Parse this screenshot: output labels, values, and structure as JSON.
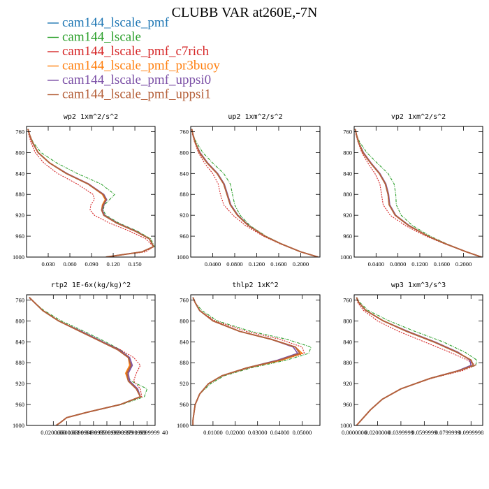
{
  "figure": {
    "title": "CLUBB VAR at260E,-7N"
  },
  "legend": [
    {
      "name": "cam144_lscale_pmf",
      "color": "#1f77b4"
    },
    {
      "name": "cam144_lscale",
      "color": "#2ca02c"
    },
    {
      "name": "cam144_lscale_pmf_c7rich",
      "color": "#d62728"
    },
    {
      "name": "cam144_lscale_pmf_pr3buoy",
      "color": "#ff7f0e"
    },
    {
      "name": "cam144_lscale_pmf_uppsi0",
      "color": "#7b4fa6"
    },
    {
      "name": "cam144_lscale_pmf_uppsi1",
      "color": "#b5603a"
    }
  ],
  "chart_data": [
    {
      "type": "line",
      "title": "wp2  1xm^2/s^2",
      "xlim": [
        0,
        0.178
      ],
      "ylim": [
        1000,
        750
      ],
      "xticks": [
        0.03,
        0.06,
        0.09,
        0.12,
        0.15
      ],
      "xtick_labels": [
        "0.030",
        "0.060",
        "0.090",
        "0.120",
        "0.150"
      ],
      "yticks": [
        760,
        800,
        840,
        880,
        920,
        960,
        1000
      ],
      "y": [
        755,
        765,
        780,
        800,
        820,
        840,
        860,
        880,
        890,
        900,
        910,
        920,
        935,
        950,
        965,
        980,
        990,
        1000
      ],
      "series": [
        {
          "name": "cam144_lscale_pmf",
          "x": [
            0.002,
            0.004,
            0.008,
            0.016,
            0.032,
            0.055,
            0.085,
            0.106,
            0.11,
            0.106,
            0.104,
            0.107,
            0.125,
            0.15,
            0.17,
            0.176,
            0.16,
            0.11
          ]
        },
        {
          "name": "cam144_lscale",
          "x": [
            0.002,
            0.004,
            0.009,
            0.02,
            0.042,
            0.07,
            0.103,
            0.122,
            0.115,
            0.108,
            0.106,
            0.11,
            0.128,
            0.153,
            0.172,
            0.177,
            0.16,
            0.11
          ]
        },
        {
          "name": "cam144_lscale_pmf_c7rich",
          "x": [
            0.002,
            0.003,
            0.006,
            0.012,
            0.024,
            0.043,
            0.07,
            0.092,
            0.094,
            0.089,
            0.088,
            0.094,
            0.115,
            0.142,
            0.165,
            0.176,
            0.165,
            0.11
          ]
        },
        {
          "name": "cam144_lscale_pmf_pr3buoy",
          "x": [
            0.002,
            0.004,
            0.008,
            0.016,
            0.032,
            0.055,
            0.085,
            0.105,
            0.109,
            0.105,
            0.104,
            0.107,
            0.125,
            0.15,
            0.17,
            0.176,
            0.16,
            0.11
          ]
        },
        {
          "name": "cam144_lscale_pmf_uppsi0",
          "x": [
            0.002,
            0.004,
            0.008,
            0.016,
            0.032,
            0.056,
            0.086,
            0.107,
            0.111,
            0.107,
            0.105,
            0.108,
            0.126,
            0.151,
            0.17,
            0.176,
            0.16,
            0.11
          ]
        },
        {
          "name": "cam144_lscale_pmf_uppsi1",
          "x": [
            0.002,
            0.004,
            0.008,
            0.016,
            0.032,
            0.055,
            0.085,
            0.106,
            0.11,
            0.106,
            0.104,
            0.107,
            0.125,
            0.15,
            0.17,
            0.176,
            0.16,
            0.11
          ]
        }
      ]
    },
    {
      "type": "line",
      "title": "up2  1xm^2/s^2",
      "xlim": [
        0,
        0.235
      ],
      "ylim": [
        1000,
        750
      ],
      "xticks": [
        0.04,
        0.08,
        0.12,
        0.16,
        0.2
      ],
      "xtick_labels": [
        "0.0400",
        "0.0800",
        "0.1200",
        "0.1600",
        "0.2000"
      ],
      "yticks": [
        760,
        800,
        840,
        880,
        920,
        960,
        1000
      ],
      "y": [
        755,
        765,
        780,
        800,
        820,
        840,
        860,
        880,
        900,
        920,
        940,
        960,
        975,
        990,
        1000
      ],
      "series": [
        {
          "name": "cam144_lscale_pmf",
          "x": [
            0.002,
            0.004,
            0.008,
            0.016,
            0.03,
            0.048,
            0.06,
            0.066,
            0.072,
            0.085,
            0.105,
            0.135,
            0.165,
            0.2,
            0.232
          ]
        },
        {
          "name": "cam144_lscale",
          "x": [
            0.002,
            0.004,
            0.01,
            0.022,
            0.04,
            0.06,
            0.072,
            0.076,
            0.08,
            0.09,
            0.108,
            0.137,
            0.166,
            0.2,
            0.232
          ]
        },
        {
          "name": "cam144_lscale_pmf_c7rich",
          "x": [
            0.002,
            0.003,
            0.007,
            0.014,
            0.025,
            0.04,
            0.05,
            0.054,
            0.06,
            0.077,
            0.1,
            0.132,
            0.163,
            0.2,
            0.232
          ]
        },
        {
          "name": "cam144_lscale_pmf_pr3buoy",
          "x": [
            0.002,
            0.004,
            0.008,
            0.016,
            0.03,
            0.048,
            0.06,
            0.066,
            0.072,
            0.085,
            0.105,
            0.135,
            0.165,
            0.2,
            0.232
          ]
        },
        {
          "name": "cam144_lscale_pmf_uppsi0",
          "x": [
            0.002,
            0.004,
            0.008,
            0.017,
            0.031,
            0.049,
            0.061,
            0.067,
            0.073,
            0.086,
            0.106,
            0.135,
            0.165,
            0.2,
            0.232
          ]
        },
        {
          "name": "cam144_lscale_pmf_uppsi1",
          "x": [
            0.002,
            0.004,
            0.008,
            0.016,
            0.03,
            0.048,
            0.06,
            0.066,
            0.072,
            0.085,
            0.105,
            0.135,
            0.165,
            0.2,
            0.232
          ]
        }
      ]
    },
    {
      "type": "line",
      "title": "vp2  1xm^2/s^2",
      "xlim": [
        0,
        0.235
      ],
      "ylim": [
        1000,
        750
      ],
      "xticks": [
        0.04,
        0.08,
        0.12,
        0.16,
        0.2
      ],
      "xtick_labels": [
        "0.0400",
        "0.0800",
        "0.1200",
        "0.1600",
        "0.2000"
      ],
      "yticks": [
        760,
        800,
        840,
        880,
        920,
        960,
        1000
      ],
      "y": [
        755,
        765,
        780,
        800,
        820,
        840,
        860,
        880,
        900,
        920,
        940,
        960,
        975,
        990,
        1000
      ],
      "series": [
        {
          "name": "cam144_lscale_pmf",
          "x": [
            0.002,
            0.004,
            0.008,
            0.016,
            0.03,
            0.046,
            0.057,
            0.062,
            0.064,
            0.075,
            0.1,
            0.135,
            0.168,
            0.205,
            0.233
          ]
        },
        {
          "name": "cam144_lscale",
          "x": [
            0.002,
            0.004,
            0.01,
            0.023,
            0.042,
            0.062,
            0.073,
            0.076,
            0.077,
            0.086,
            0.107,
            0.139,
            0.17,
            0.205,
            0.233
          ]
        },
        {
          "name": "cam144_lscale_pmf_c7rich",
          "x": [
            0.002,
            0.003,
            0.007,
            0.014,
            0.025,
            0.038,
            0.047,
            0.05,
            0.053,
            0.066,
            0.094,
            0.131,
            0.166,
            0.205,
            0.233
          ]
        },
        {
          "name": "cam144_lscale_pmf_pr3buoy",
          "x": [
            0.002,
            0.004,
            0.008,
            0.016,
            0.03,
            0.046,
            0.057,
            0.062,
            0.064,
            0.075,
            0.1,
            0.135,
            0.168,
            0.205,
            0.233
          ]
        },
        {
          "name": "cam144_lscale_pmf_uppsi0",
          "x": [
            0.002,
            0.004,
            0.008,
            0.017,
            0.031,
            0.047,
            0.058,
            0.063,
            0.065,
            0.076,
            0.101,
            0.135,
            0.168,
            0.205,
            0.233
          ]
        },
        {
          "name": "cam144_lscale_pmf_uppsi1",
          "x": [
            0.002,
            0.004,
            0.008,
            0.016,
            0.03,
            0.046,
            0.057,
            0.062,
            0.064,
            0.075,
            0.1,
            0.135,
            0.168,
            0.205,
            0.233
          ]
        }
      ]
    },
    {
      "type": "line",
      "title": "rtp2  1E-6x(kg/kg)^2",
      "xlim": [
        0,
        0.096
      ],
      "ylim": [
        1000,
        750
      ],
      "xticks": [
        0.02,
        0.03,
        0.04,
        0.05,
        0.06,
        0.07,
        0.08,
        0.09
      ],
      "xtick_labels": [
        "0.0200000",
        "0.0300000",
        "0.0399999",
        "0.0499999",
        "0.0599999",
        "0.0699999",
        "0.0799999",
        "0.0899999"
      ],
      "x_extra_label": "40",
      "yticks": [
        760,
        800,
        840,
        880,
        920,
        960,
        1000
      ],
      "y": [
        755,
        765,
        780,
        800,
        820,
        840,
        855,
        870,
        885,
        900,
        915,
        930,
        945,
        960,
        975,
        985,
        995,
        1000
      ],
      "series": [
        {
          "name": "cam144_lscale_pmf",
          "x": [
            0.002,
            0.006,
            0.012,
            0.024,
            0.04,
            0.056,
            0.068,
            0.076,
            0.078,
            0.075,
            0.076,
            0.082,
            0.085,
            0.07,
            0.045,
            0.03,
            0.025,
            0.022
          ]
        },
        {
          "name": "cam144_lscale",
          "x": [
            0.002,
            0.006,
            0.013,
            0.026,
            0.043,
            0.059,
            0.07,
            0.077,
            0.077,
            0.074,
            0.078,
            0.09,
            0.088,
            0.071,
            0.045,
            0.03,
            0.025,
            0.022
          ]
        },
        {
          "name": "cam144_lscale_pmf_c7rich",
          "x": [
            0.002,
            0.006,
            0.012,
            0.024,
            0.04,
            0.057,
            0.07,
            0.08,
            0.085,
            0.082,
            0.08,
            0.085,
            0.086,
            0.07,
            0.045,
            0.03,
            0.025,
            0.022
          ]
        },
        {
          "name": "cam144_lscale_pmf_pr3buoy",
          "x": [
            0.002,
            0.006,
            0.012,
            0.024,
            0.04,
            0.056,
            0.068,
            0.076,
            0.077,
            0.074,
            0.076,
            0.082,
            0.085,
            0.07,
            0.045,
            0.03,
            0.025,
            0.022
          ]
        },
        {
          "name": "cam144_lscale_pmf_uppsi0",
          "x": [
            0.002,
            0.006,
            0.012,
            0.024,
            0.041,
            0.057,
            0.069,
            0.077,
            0.079,
            0.076,
            0.077,
            0.083,
            0.085,
            0.07,
            0.045,
            0.03,
            0.025,
            0.022
          ]
        },
        {
          "name": "cam144_lscale_pmf_uppsi1",
          "x": [
            0.002,
            0.006,
            0.012,
            0.024,
            0.04,
            0.056,
            0.068,
            0.076,
            0.078,
            0.075,
            0.076,
            0.082,
            0.085,
            0.07,
            0.045,
            0.03,
            0.025,
            0.022
          ]
        }
      ]
    },
    {
      "type": "line",
      "title": "thlp2  1xK^2",
      "xlim": [
        0,
        0.058
      ],
      "ylim": [
        1000,
        750
      ],
      "xticks": [
        0.01,
        0.02,
        0.03,
        0.04,
        0.05
      ],
      "xtick_labels": [
        "0.01000",
        "0.02000",
        "0.03000",
        "0.04000",
        "0.05000"
      ],
      "yticks": [
        760,
        800,
        840,
        880,
        920,
        960,
        1000
      ],
      "y": [
        755,
        765,
        780,
        800,
        820,
        835,
        850,
        862,
        875,
        890,
        905,
        920,
        940,
        960,
        975,
        990,
        1000
      ],
      "series": [
        {
          "name": "cam144_lscale_pmf",
          "x": [
            0.001,
            0.002,
            0.004,
            0.01,
            0.022,
            0.036,
            0.047,
            0.049,
            0.04,
            0.025,
            0.014,
            0.008,
            0.004,
            0.002,
            0.0015,
            0.001,
            0.001
          ]
        },
        {
          "name": "cam144_lscale",
          "x": [
            0.001,
            0.002,
            0.005,
            0.012,
            0.027,
            0.043,
            0.054,
            0.053,
            0.043,
            0.027,
            0.015,
            0.009,
            0.004,
            0.002,
            0.0015,
            0.001,
            0.001
          ]
        },
        {
          "name": "cam144_lscale_pmf_c7rich",
          "x": [
            0.001,
            0.002,
            0.004,
            0.011,
            0.025,
            0.04,
            0.05,
            0.051,
            0.041,
            0.026,
            0.014,
            0.008,
            0.004,
            0.002,
            0.0015,
            0.001,
            0.001
          ]
        },
        {
          "name": "cam144_lscale_pmf_pr3buoy",
          "x": [
            0.001,
            0.002,
            0.004,
            0.01,
            0.022,
            0.036,
            0.047,
            0.05,
            0.041,
            0.025,
            0.014,
            0.008,
            0.004,
            0.002,
            0.0015,
            0.001,
            0.001
          ]
        },
        {
          "name": "cam144_lscale_pmf_uppsi0",
          "x": [
            0.001,
            0.002,
            0.004,
            0.01,
            0.022,
            0.036,
            0.046,
            0.048,
            0.039,
            0.025,
            0.014,
            0.008,
            0.004,
            0.002,
            0.0015,
            0.001,
            0.001
          ]
        },
        {
          "name": "cam144_lscale_pmf_uppsi1",
          "x": [
            0.001,
            0.002,
            0.004,
            0.01,
            0.022,
            0.036,
            0.047,
            0.049,
            0.04,
            0.025,
            0.014,
            0.008,
            0.004,
            0.002,
            0.0015,
            0.001,
            0.001
          ]
        }
      ]
    },
    {
      "type": "line",
      "title": "wp3  1xm^3/s^3",
      "xlim": [
        0,
        0.11
      ],
      "ylim": [
        1000,
        750
      ],
      "xticks": [
        0.0,
        0.02,
        0.04,
        0.06,
        0.08,
        0.1
      ],
      "xtick_labels": [
        "0.0000000",
        "0.0200000",
        "0.0399999",
        "0.0599999",
        "0.0799999",
        "0.0999998"
      ],
      "yticks": [
        760,
        800,
        840,
        880,
        920,
        960,
        1000
      ],
      "y": [
        755,
        765,
        780,
        800,
        820,
        840,
        860,
        875,
        885,
        895,
        910,
        930,
        950,
        970,
        985,
        1000
      ],
      "series": [
        {
          "name": "cam144_lscale_pmf",
          "x": [
            0.002,
            0.004,
            0.01,
            0.025,
            0.045,
            0.068,
            0.088,
            0.1,
            0.102,
            0.09,
            0.065,
            0.04,
            0.024,
            0.014,
            0.008,
            0.002
          ]
        },
        {
          "name": "cam144_lscale",
          "x": [
            0.002,
            0.005,
            0.012,
            0.03,
            0.052,
            0.076,
            0.095,
            0.105,
            0.104,
            0.09,
            0.065,
            0.04,
            0.024,
            0.014,
            0.008,
            0.002
          ]
        },
        {
          "name": "cam144_lscale_pmf_c7rich",
          "x": [
            0.002,
            0.003,
            0.008,
            0.02,
            0.038,
            0.06,
            0.082,
            0.097,
            0.104,
            0.093,
            0.066,
            0.04,
            0.024,
            0.014,
            0.008,
            0.002
          ]
        },
        {
          "name": "cam144_lscale_pmf_pr3buoy",
          "x": [
            0.002,
            0.004,
            0.01,
            0.025,
            0.045,
            0.068,
            0.088,
            0.1,
            0.102,
            0.09,
            0.065,
            0.04,
            0.024,
            0.014,
            0.008,
            0.002
          ]
        },
        {
          "name": "cam144_lscale_pmf_uppsi0",
          "x": [
            0.002,
            0.004,
            0.01,
            0.025,
            0.046,
            0.069,
            0.089,
            0.099,
            0.1,
            0.089,
            0.065,
            0.04,
            0.024,
            0.014,
            0.008,
            0.002
          ]
        },
        {
          "name": "cam144_lscale_pmf_uppsi1",
          "x": [
            0.002,
            0.004,
            0.01,
            0.025,
            0.045,
            0.068,
            0.088,
            0.1,
            0.102,
            0.09,
            0.065,
            0.04,
            0.024,
            0.014,
            0.008,
            0.002
          ]
        }
      ]
    }
  ]
}
